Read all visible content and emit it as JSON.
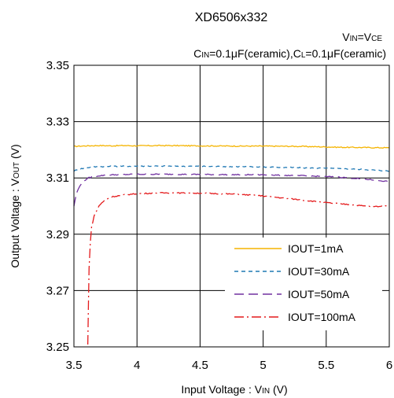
{
  "chart_data": {
    "type": "line",
    "title": "XD6506x332",
    "subtitle_line1": {
      "pre": "V",
      "sub1": "IN",
      "mid": "=V",
      "sub2": "CE"
    },
    "subtitle_line2": {
      "p1": "C",
      "s1": "IN",
      "p2": "=0.1μF(ceramic),C",
      "s2": "L",
      "p3": "=0.1μF(ceramic)"
    },
    "xlabel": {
      "pre": "Input Voltage : V",
      "sub": "IN",
      "post": " (V)"
    },
    "ylabel": {
      "pre": "Output Voltage : V",
      "sub": "OUT",
      "post": " (V)"
    },
    "xlim": [
      3.5,
      6
    ],
    "ylim": [
      3.25,
      3.35
    ],
    "xticks": [
      "3.5",
      "4",
      "4.5",
      "5",
      "5.5",
      "6"
    ],
    "yticks": [
      "3.25",
      "3.27",
      "3.29",
      "3.31",
      "3.33",
      "3.35"
    ],
    "grid": true,
    "legend_position": "lower-right",
    "series": [
      {
        "name": "IOUT=1mA",
        "color": "#f5b400",
        "dash": "solid",
        "points": [
          [
            3.5,
            3.3212
          ],
          [
            3.6,
            3.3214
          ],
          [
            3.7,
            3.3215
          ],
          [
            3.8,
            3.3214
          ],
          [
            3.9,
            3.3215
          ],
          [
            4.0,
            3.3214
          ],
          [
            4.2,
            3.3215
          ],
          [
            4.5,
            3.3214
          ],
          [
            4.8,
            3.3213
          ],
          [
            5.0,
            3.3213
          ],
          [
            5.3,
            3.3212
          ],
          [
            5.6,
            3.3209
          ],
          [
            5.8,
            3.3208
          ],
          [
            6.0,
            3.3207
          ]
        ]
      },
      {
        "name": "IOUT=30mA",
        "color": "#1f78b4",
        "dash": "dashed",
        "points": [
          [
            3.5,
            3.3125
          ],
          [
            3.55,
            3.3132
          ],
          [
            3.6,
            3.3136
          ],
          [
            3.65,
            3.3139
          ],
          [
            3.7,
            3.314
          ],
          [
            3.8,
            3.3141
          ],
          [
            4.0,
            3.3142
          ],
          [
            4.3,
            3.3142
          ],
          [
            4.6,
            3.3141
          ],
          [
            5.0,
            3.3139
          ],
          [
            5.3,
            3.3136
          ],
          [
            5.6,
            3.3133
          ],
          [
            5.8,
            3.313
          ],
          [
            6.0,
            3.3124
          ]
        ]
      },
      {
        "name": "IOUT=50mA",
        "color": "#7030a0",
        "dash": "longdash",
        "points": [
          [
            3.5,
            3.3
          ],
          [
            3.52,
            3.3045
          ],
          [
            3.55,
            3.3075
          ],
          [
            3.58,
            3.309
          ],
          [
            3.62,
            3.3101
          ],
          [
            3.7,
            3.3108
          ],
          [
            3.8,
            3.3111
          ],
          [
            4.0,
            3.3113
          ],
          [
            4.3,
            3.3113
          ],
          [
            4.6,
            3.3112
          ],
          [
            5.0,
            3.3111
          ],
          [
            5.3,
            3.3108
          ],
          [
            5.6,
            3.3103
          ],
          [
            5.8,
            3.3096
          ],
          [
            6.0,
            3.3087
          ]
        ]
      },
      {
        "name": "IOUT=100mA",
        "color": "#e41a1c",
        "dash": "dashdot",
        "points": [
          [
            3.61,
            3.2508
          ],
          [
            3.615,
            3.265
          ],
          [
            3.62,
            3.278
          ],
          [
            3.63,
            3.287
          ],
          [
            3.64,
            3.2925
          ],
          [
            3.66,
            3.2965
          ],
          [
            3.7,
            3.3002
          ],
          [
            3.75,
            3.3023
          ],
          [
            3.8,
            3.3033
          ],
          [
            3.9,
            3.304
          ],
          [
            4.0,
            3.3044
          ],
          [
            4.2,
            3.3047
          ],
          [
            4.5,
            3.3046
          ],
          [
            4.8,
            3.3042
          ],
          [
            5.0,
            3.3036
          ],
          [
            5.3,
            3.3022
          ],
          [
            5.5,
            3.3012
          ],
          [
            5.7,
            3.3005
          ],
          [
            5.85,
            3.2998
          ],
          [
            6.0,
            3.3
          ]
        ]
      }
    ]
  }
}
